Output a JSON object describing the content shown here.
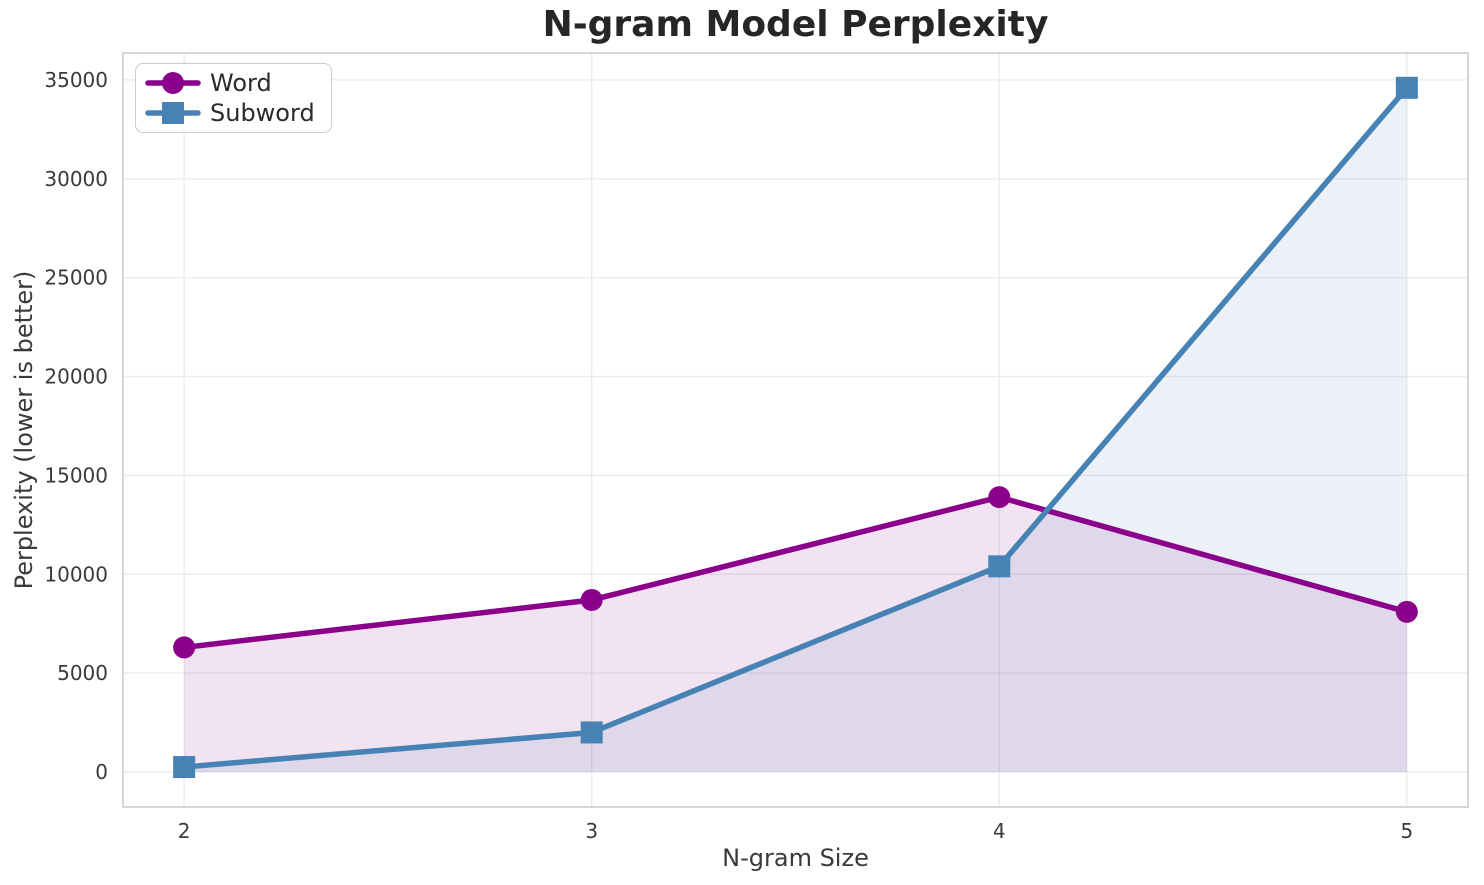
{
  "chart_data": {
    "type": "line",
    "title": "N-gram Model Perplexity",
    "xlabel": "N-gram Size",
    "ylabel": "Perplexity (lower is better)",
    "x": [
      2,
      3,
      4,
      5
    ],
    "series": [
      {
        "name": "Word",
        "marker": "circle",
        "color": "#8B008B",
        "values": [
          6300,
          8700,
          13900,
          8100
        ]
      },
      {
        "name": "Subword",
        "marker": "square",
        "color": "#4682B4",
        "values": [
          250,
          2000,
          10400,
          34600
        ]
      }
    ],
    "fill_to_zero": true,
    "fill_opacity": 0.11,
    "xlim": [
      1.85,
      5.15
    ],
    "ylim": [
      -1770,
      36360
    ],
    "xticks": [
      "2",
      "3",
      "4",
      "5"
    ],
    "xtick_positions": [
      2,
      3,
      4,
      5
    ],
    "yticks": [
      "0",
      "5000",
      "10000",
      "15000",
      "20000",
      "25000",
      "30000",
      "35000"
    ],
    "ytick_positions": [
      0,
      5000,
      10000,
      15000,
      20000,
      25000,
      30000,
      35000
    ],
    "grid": true,
    "legend_position": "upper-left",
    "styles": {
      "grid_color": "#ececec",
      "border_color": "#cccccc",
      "tick_color": "#3a3a3a",
      "title_color": "#262626"
    }
  }
}
